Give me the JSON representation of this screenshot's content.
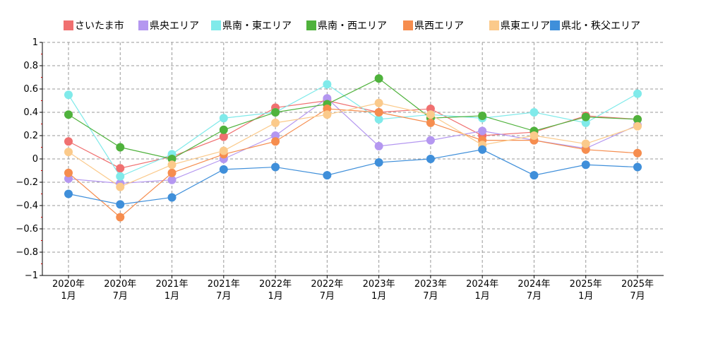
{
  "chart_data": {
    "type": "line",
    "categories": [
      [
        "2020年",
        "1月"
      ],
      [
        "2020年",
        "7月"
      ],
      [
        "2021年",
        "1月"
      ],
      [
        "2021年",
        "7月"
      ],
      [
        "2022年",
        "1月"
      ],
      [
        "2022年",
        "7月"
      ],
      [
        "2023年",
        "1月"
      ],
      [
        "2023年",
        "7月"
      ],
      [
        "2024年",
        "1月"
      ],
      [
        "2024年",
        "7月"
      ],
      [
        "2025年",
        "1月"
      ],
      [
        "2025年",
        "7月"
      ]
    ],
    "ylim": [
      -1,
      1
    ],
    "yticks": [
      1,
      0.8,
      0.6,
      0.4,
      0.2,
      0,
      -0.2,
      -0.4,
      -0.6,
      -0.8,
      -1
    ],
    "ytick_labels": [
      "1",
      "0.8",
      "0.6",
      "0.4",
      "0.2",
      "0",
      "−0.2",
      "−0.4",
      "−0.6",
      "−0.8",
      "−1"
    ],
    "grid": true,
    "legend_position": "top",
    "series": [
      {
        "name": "さいたま市",
        "color": "#f07070",
        "values": [
          0.15,
          -0.08,
          0.02,
          0.19,
          0.44,
          0.5,
          0.4,
          0.43,
          0.2,
          0.23,
          0.37,
          0.34
        ]
      },
      {
        "name": "県央エリア",
        "color": "#b497f0",
        "values": [
          -0.17,
          -0.21,
          -0.18,
          0.0,
          0.2,
          0.52,
          0.11,
          0.16,
          0.24,
          0.16,
          0.09,
          0.29
        ]
      },
      {
        "name": "県南・東エリア",
        "color": "#80eaea",
        "values": [
          0.55,
          -0.15,
          0.04,
          0.35,
          0.4,
          0.64,
          0.34,
          0.38,
          0.35,
          0.4,
          0.31,
          0.56
        ]
      },
      {
        "name": "県南・西エリア",
        "color": "#4fb23c",
        "values": [
          0.38,
          0.1,
          0.0,
          0.25,
          0.4,
          0.47,
          0.69,
          0.35,
          0.37,
          0.24,
          0.36,
          0.34
        ]
      },
      {
        "name": "県西エリア",
        "color": "#f68d4e",
        "values": [
          -0.12,
          -0.5,
          -0.12,
          0.04,
          0.15,
          0.43,
          0.4,
          0.31,
          0.16,
          0.16,
          0.08,
          0.05
        ]
      },
      {
        "name": "県東エリア",
        "color": "#fbca8b",
        "values": [
          0.06,
          -0.24,
          -0.05,
          0.07,
          0.31,
          0.38,
          0.48,
          0.38,
          0.12,
          0.2,
          0.13,
          0.28
        ]
      },
      {
        "name": "県北・秩父エリア",
        "color": "#3f8fda",
        "values": [
          -0.3,
          -0.39,
          -0.33,
          -0.09,
          -0.07,
          -0.14,
          -0.03,
          0.0,
          0.08,
          -0.14,
          -0.05,
          -0.07
        ]
      }
    ]
  }
}
